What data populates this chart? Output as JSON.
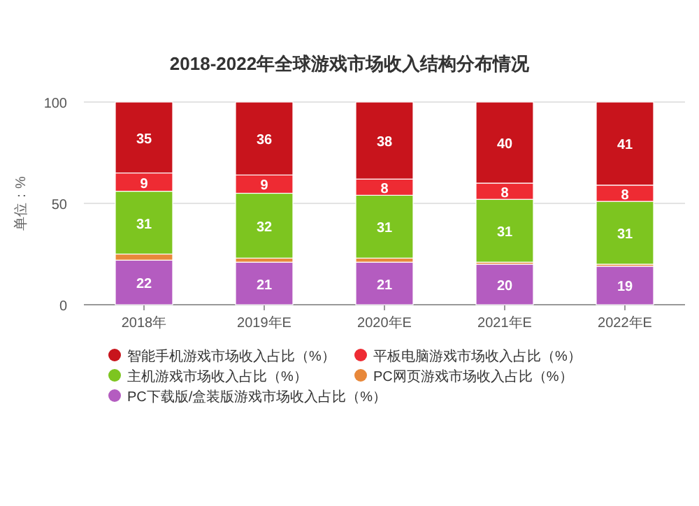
{
  "chart_data": {
    "type": "bar",
    "title": "2018-2022年全球游戏市场收入结构分布情况",
    "ylabel": "单位：%",
    "categories": [
      "2018年",
      "2019年E",
      "2020年E",
      "2021年E",
      "2022年E"
    ],
    "stacked": true,
    "ylim": [
      0,
      100
    ],
    "yticks": [
      0,
      50,
      100
    ],
    "grid": "y",
    "legend": "bottom",
    "series": [
      {
        "name": "PC下载版/盒装版游戏市场收入占比（%）",
        "color": "#b45cc0",
        "values": [
          22,
          21,
          21,
          20,
          19
        ],
        "value_labels": [
          "22",
          "21",
          "21",
          "20",
          "19"
        ]
      },
      {
        "name": "PC网页游戏市场收入占比（%）",
        "color": "#e8883a",
        "values": [
          3,
          2,
          2,
          1,
          1
        ],
        "value_labels": [
          null,
          null,
          null,
          null,
          null
        ]
      },
      {
        "name": "主机游戏市场收入占比（%）",
        "color": "#7dc520",
        "values": [
          31,
          32,
          31,
          31,
          31
        ],
        "value_labels": [
          "31",
          "32",
          "31",
          "31",
          "31"
        ]
      },
      {
        "name": "平板电脑游戏市场收入占比（%）",
        "color": "#ee2b33",
        "values": [
          9,
          9,
          8,
          8,
          8
        ],
        "value_labels": [
          "9",
          "9",
          "8",
          "8",
          "8"
        ]
      },
      {
        "name": "智能手机游戏市场收入占比（%）",
        "color": "#c8141c",
        "values": [
          35,
          36,
          38,
          40,
          41
        ],
        "value_labels": [
          "35",
          "36",
          "38",
          "40",
          "41"
        ]
      }
    ]
  }
}
